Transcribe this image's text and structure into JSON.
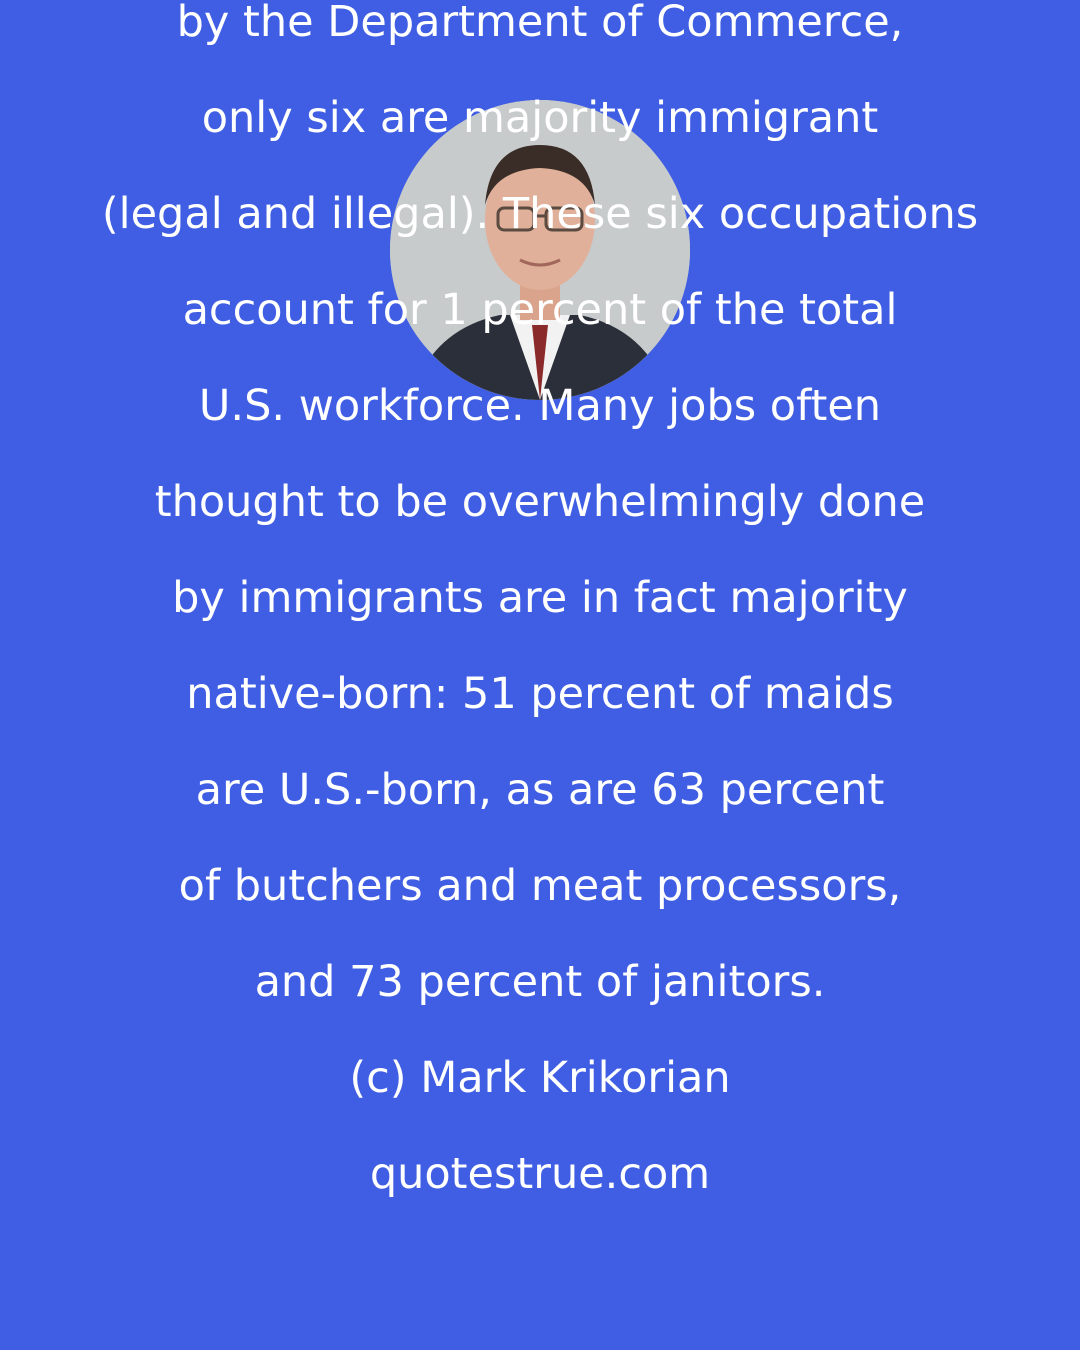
{
  "quote": {
    "lines": [
      "by the Department of Commerce,",
      "only six are majority immigrant",
      "(legal and illegal). These six occupations",
      "account for 1 percent of the total",
      "U.S. workforce. Many jobs often",
      "thought to be overwhelmingly done",
      "by immigrants are in fact majority",
      "native-born: 51 percent of maids",
      "are U.S.-born, as are 63 percent",
      "of butchers and meat processors,",
      "and 73 percent of janitors."
    ]
  },
  "author": "(c) Mark Krikorian",
  "site": "quotestrue.com",
  "colors": {
    "background": "#3f5ee3",
    "text": "#ffffff"
  }
}
